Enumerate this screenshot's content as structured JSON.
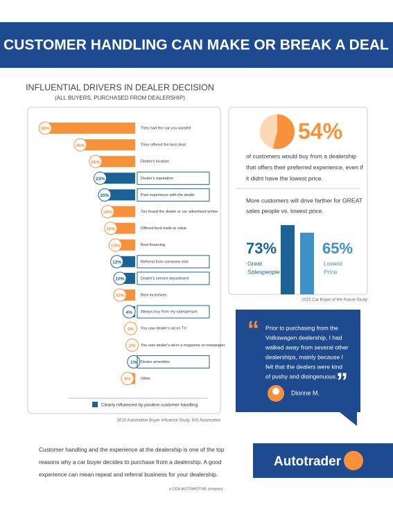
{
  "header": {
    "title": "CUSTOMER HANDLING CAN MAKE OR BREAK A DEAL"
  },
  "chart_data": [
    {
      "type": "hbar",
      "title": "INFLUENTIAL DRIVERS IN DEALER DECISION",
      "subtitle": "(ALL BUYERS, PURCHASED FROM DEALERSHIP)",
      "categories": [
        "They had the car you wanted",
        "They offered the best deal",
        "Dealer's location",
        "Dealer's reputation",
        "Past experience with the dealer",
        "You found the dealer or car advertised online",
        "Offered best trade-in value",
        "Best financing",
        "Referral from someone else",
        "Dealer's service department",
        "Best incentives",
        "Always buy from my salesperson",
        "You saw dealer's ad on TV",
        "You saw dealer's ad in a magazine or newspaper",
        "Dealer amenities",
        "Other"
      ],
      "values": [
        59,
        36,
        26,
        23,
        20,
        18,
        16,
        13,
        12,
        10,
        10,
        4,
        3,
        2,
        1,
        5
      ],
      "value_labels": [
        "59%",
        "36%",
        "26%",
        "23%",
        "20%",
        "18%",
        "16%",
        "13%",
        "12%",
        "10%",
        "10%",
        "4%",
        "3%",
        "2%",
        "1%",
        "5%"
      ],
      "colors": [
        "#f7923a",
        "#f7923a",
        "#f7923a",
        "#1b6397",
        "#1b6397",
        "#f7923a",
        "#f7923a",
        "#f7923a",
        "#1b6397",
        "#1b6397",
        "#f7923a",
        "#1b6397",
        "#f7923a",
        "#f7923a",
        "#1b6397",
        "#f7923a"
      ],
      "legend": {
        "label": "Clearly influenced by positive customer handling",
        "color": "#1b6397"
      },
      "source": "2015 Automotive Buyer Influence Study, IHS Automotive"
    },
    {
      "type": "pie",
      "values": [
        54
      ],
      "value_labels": [
        "54%"
      ],
      "color": "#f7923a",
      "text": [
        "of customers would buy from a dealership",
        "that offers their preferred experience, even if",
        "it didnt have the lowest price."
      ]
    },
    {
      "type": "bar",
      "title": [
        "More customers will drive farther for GREAT",
        "sales people vs. lowest price."
      ],
      "categories": [
        [
          "Great",
          "Salespeople"
        ],
        [
          "Lowest",
          "Price"
        ]
      ],
      "values": [
        73,
        65
      ],
      "value_labels": [
        "73%",
        "65%"
      ],
      "colors": [
        "#1b6397",
        "#3d93c8"
      ],
      "source": "2015 Car Buyer of the Future Study"
    }
  ],
  "quote": {
    "open_mark": "“",
    "close_mark": "”",
    "lines": [
      "Prior to purchasing from the",
      "Volkswagen dealership, I had",
      "walked away from several other",
      "dealerships, mainly because I",
      "felt that the dealers were kind",
      "of pushy and disingenuous."
    ],
    "author": "Dionne M."
  },
  "footer": {
    "text": [
      "Customer handling and the experience at the dealership is one of the top",
      "reasons why a car buyer decides to purchase from a dealership. A good",
      "experience can mean repeat and referral business for your dealership."
    ],
    "logo": "Autotrader",
    "company": "a COX AUTOMOTIVE company"
  }
}
